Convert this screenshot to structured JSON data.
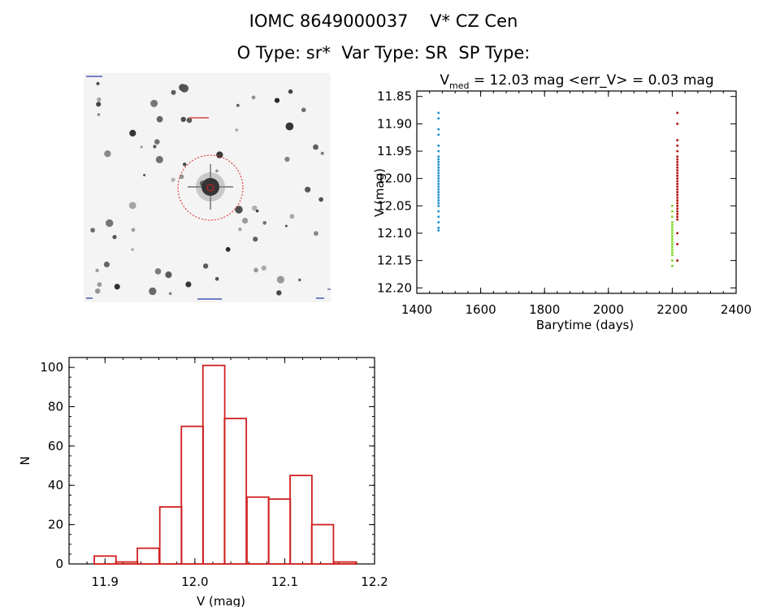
{
  "header": {
    "title_line1": "IOMC 8649000037    V* CZ Cen",
    "title_line2": "O Type: sr*  Var Type: SR  SP Type:"
  },
  "thumbnail": {
    "description_icon": "star-field-image-icon",
    "marker_color": "#e02020"
  },
  "chart_data": [
    {
      "type": "scatter",
      "title": "V_med = 12.03 mag <err_V> = 0.03 mag",
      "title_parts": {
        "v": "V",
        "sub": "med",
        "rest": " = 12.03 mag <err_V> = 0.03 mag"
      },
      "xlabel": "Barytime (days)",
      "ylabel": "V (mag)",
      "xlim": [
        1400,
        2400
      ],
      "ylim": [
        12.21,
        11.84
      ],
      "y_inverted": true,
      "x_ticks": [
        1400,
        1600,
        1800,
        2000,
        2200,
        2400
      ],
      "y_ticks": [
        "11.85",
        "11.90",
        "11.95",
        "12.00",
        "12.05",
        "12.10",
        "12.15",
        "12.20"
      ],
      "series": [
        {
          "color": "#1e90d0",
          "x": 1468,
          "y": [
            11.88,
            11.89,
            11.91,
            11.92,
            11.94,
            11.95,
            11.96,
            11.965,
            11.97,
            11.975,
            11.98,
            11.985,
            11.99,
            11.995,
            12.0,
            12.005,
            12.01,
            12.015,
            12.02,
            12.025,
            12.03,
            12.035,
            12.04,
            12.045,
            12.05,
            12.06,
            12.07,
            12.08,
            12.09,
            12.095
          ]
        },
        {
          "color": "#b01010",
          "x": 2216,
          "y": [
            11.88,
            11.9,
            11.93,
            11.94,
            11.95,
            11.96,
            11.965,
            11.97,
            11.975,
            11.98,
            11.985,
            11.99,
            11.995,
            12.0,
            12.005,
            12.01,
            12.015,
            12.02,
            12.025,
            12.03,
            12.035,
            12.04,
            12.045,
            12.05,
            12.055,
            12.06,
            12.065,
            12.07,
            12.075,
            12.1,
            12.12,
            12.15
          ]
        },
        {
          "color": "#7ed321",
          "x": 2200,
          "y": [
            12.05,
            12.06,
            12.07,
            12.08,
            12.085,
            12.09,
            12.095,
            12.1,
            12.105,
            12.11,
            12.115,
            12.12,
            12.125,
            12.13,
            12.135,
            12.14,
            12.15,
            12.16
          ]
        }
      ]
    },
    {
      "type": "bar",
      "title": "",
      "xlabel": "V (mag)",
      "ylabel": "N",
      "xlim": [
        11.86,
        12.2
      ],
      "ylim": [
        0,
        105
      ],
      "x_ticks": [
        "11.9",
        "12.0",
        "12.1",
        "12.2"
      ],
      "y_ticks": [
        "0",
        "20",
        "40",
        "60",
        "80",
        "100"
      ],
      "bin_width": 0.02426,
      "bins_left": [
        11.888,
        11.912,
        11.936,
        11.961,
        11.985,
        12.009,
        12.033,
        12.058,
        12.082,
        12.106,
        12.13,
        12.155
      ],
      "values": [
        4,
        1,
        8,
        29,
        70,
        101,
        74,
        34,
        33,
        45,
        20,
        1
      ],
      "color": "#d02020"
    }
  ]
}
